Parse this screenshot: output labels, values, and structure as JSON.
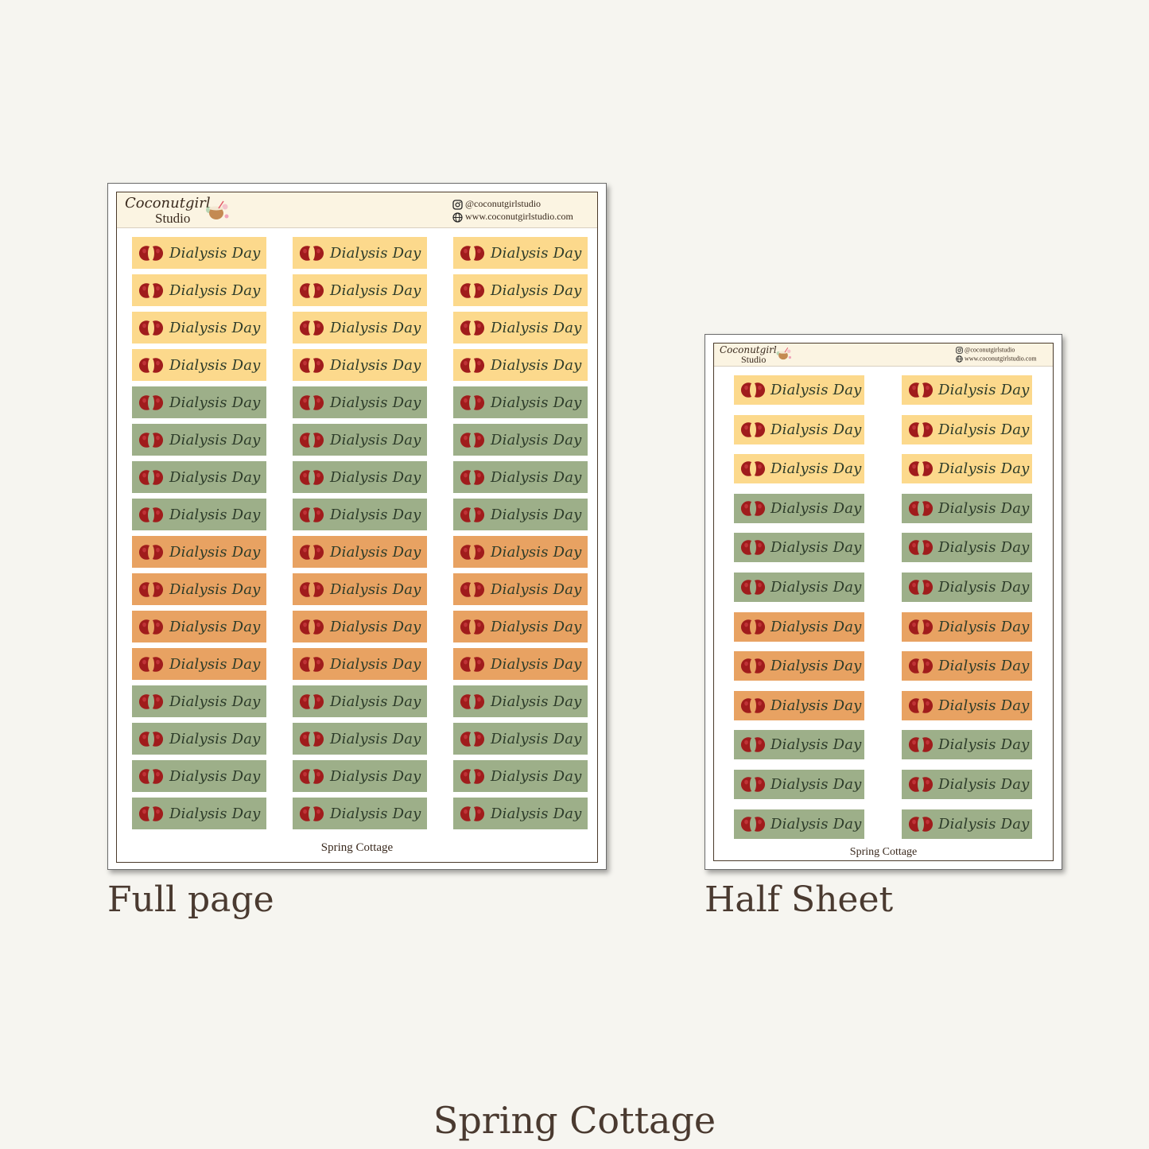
{
  "brand": {
    "name": "Coconutgirl",
    "sub": "Studio",
    "instagram": "@coconutgirlstudio",
    "website": "www.coconutgirlstudio.com"
  },
  "colors": {
    "yellow": "#fcd98c",
    "green": "#9daf89",
    "orange": "#e8a262",
    "kidney": "#a01c1c"
  },
  "sticker_label": "Dialysis Day",
  "full_page": {
    "caption": "Full page",
    "footer": "Spring Cottage",
    "columns": 3,
    "row_colors": [
      "yellow",
      "yellow",
      "yellow",
      "yellow",
      "green",
      "green",
      "green",
      "green",
      "orange",
      "orange",
      "orange",
      "orange",
      "green",
      "green",
      "green",
      "green"
    ]
  },
  "half_sheet": {
    "caption": "Half Sheet",
    "footer": "Spring Cottage",
    "columns": 2,
    "row_colors": [
      "yellow",
      "yellow",
      "yellow",
      "green",
      "green",
      "green",
      "orange",
      "orange",
      "orange",
      "green",
      "green",
      "green"
    ]
  },
  "title": "Spring Cottage"
}
